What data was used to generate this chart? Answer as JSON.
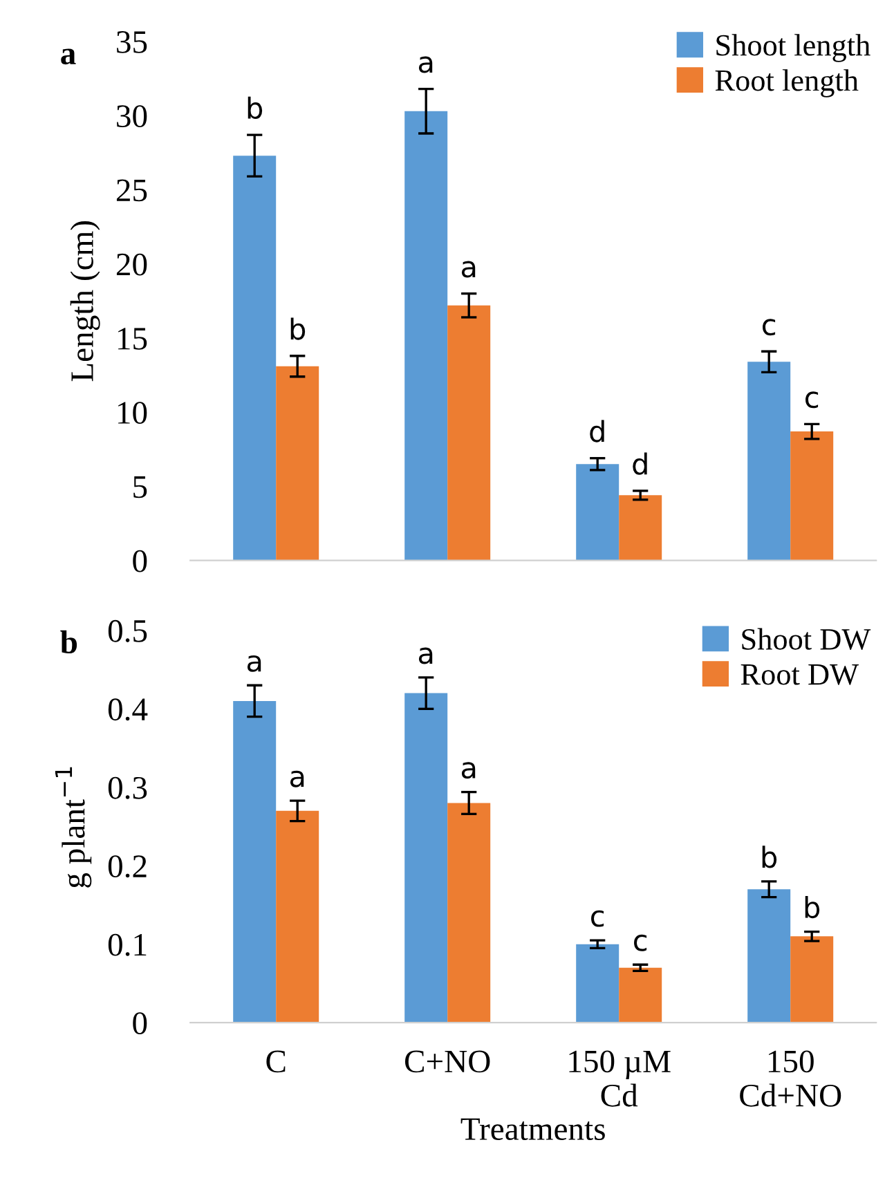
{
  "chart_data": [
    {
      "type": "bar",
      "title": "a",
      "ylabel": "Length (cm)",
      "categories": [
        null,
        null,
        null,
        null
      ],
      "ylim": [
        0,
        35
      ],
      "yticks": [
        0,
        5,
        10,
        15,
        20,
        25,
        30,
        35
      ],
      "tick_labels": "y",
      "legend": "top right",
      "series": [
        {
          "name": "Shoot length",
          "color": "#5b9bd5",
          "values": [
            27.3,
            30.3,
            6.5,
            13.4
          ],
          "errors": [
            1.4,
            1.5,
            0.4,
            0.7
          ],
          "value_labels": [
            "b",
            "a",
            "d",
            "c"
          ]
        },
        {
          "name": "Root length",
          "color": "#ed7d31",
          "values": [
            13.1,
            17.2,
            4.4,
            8.7
          ],
          "errors": [
            0.7,
            0.8,
            0.3,
            0.5
          ],
          "value_labels": [
            "b",
            "a",
            "d",
            "c"
          ]
        }
      ]
    },
    {
      "type": "bar",
      "title": "b",
      "ylabel": "g plant$^{−1}$",
      "xlabel": "Treatments",
      "categories": [
        "C",
        "C+NO",
        "150 µM\nCd",
        "150\nCd+NO"
      ],
      "ylim": [
        0,
        0.5
      ],
      "yticks": [
        0,
        0.1,
        0.2,
        0.3,
        0.4,
        0.5
      ],
      "legend": "top right",
      "series": [
        {
          "name": "Shoot DW",
          "color": "#5b9bd5",
          "values": [
            0.41,
            0.42,
            0.1,
            0.17
          ],
          "errors": [
            0.02,
            0.02,
            0.005,
            0.01
          ],
          "value_labels": [
            "a",
            "a",
            "c",
            "b"
          ]
        },
        {
          "name": "Root DW",
          "color": "#ed7d31",
          "values": [
            0.27,
            0.28,
            0.07,
            0.11
          ],
          "errors": [
            0.013,
            0.014,
            0.004,
            0.006
          ],
          "value_labels": [
            "a",
            "a",
            "c",
            "b"
          ]
        }
      ]
    }
  ]
}
